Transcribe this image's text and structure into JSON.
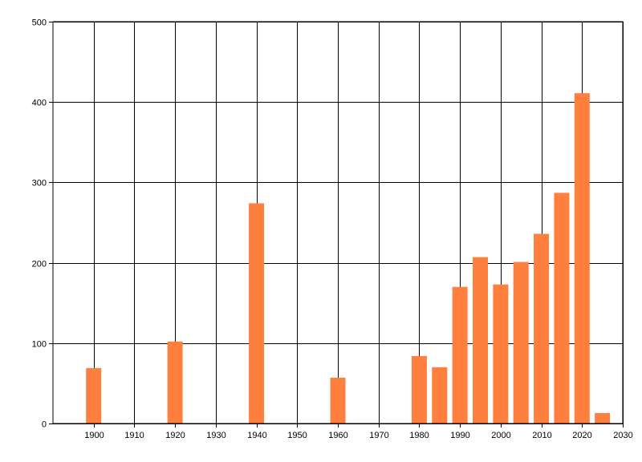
{
  "chart_data": {
    "type": "bar",
    "x": [
      1900,
      1920,
      1940,
      1960,
      1980,
      1985,
      1990,
      1995,
      2000,
      2005,
      2010,
      2015,
      2020,
      2025
    ],
    "values": [
      69,
      102,
      274,
      57,
      84,
      70,
      170,
      207,
      173,
      201,
      236,
      287,
      411,
      13
    ],
    "xlim": [
      1890,
      2030
    ],
    "ylim": [
      0,
      500
    ],
    "xticks": [
      1900,
      1910,
      1920,
      1930,
      1940,
      1950,
      1960,
      1970,
      1980,
      1990,
      2000,
      2010,
      2020,
      2030
    ],
    "yticks": [
      0,
      100,
      200,
      300,
      400,
      500
    ],
    "bar_color": "#ff7f3f",
    "grid": true,
    "legend": "none"
  }
}
